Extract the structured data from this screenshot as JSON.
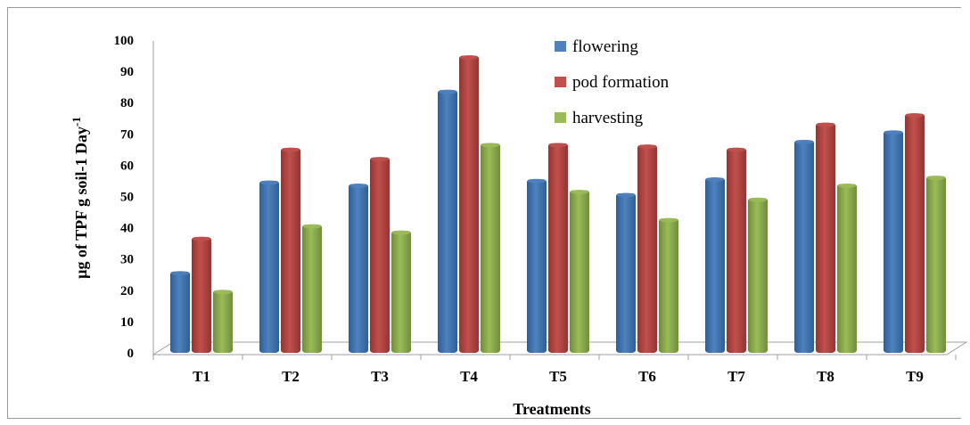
{
  "chart_data": {
    "type": "bar",
    "categories": [
      "T1",
      "T2",
      "T3",
      "T4",
      "T5",
      "T6",
      "T7",
      "T8",
      "T9"
    ],
    "series": [
      {
        "name": "flowering",
        "values": [
          26,
          55,
          54,
          84,
          55.5,
          51,
          56,
          68,
          71
        ],
        "color": "#4f81bd",
        "dark": "#2e5f99"
      },
      {
        "name": "pod formation",
        "values": [
          37,
          65.5,
          62.5,
          95,
          67,
          66.5,
          65.5,
          73.5,
          76.5
        ],
        "color": "#c0504d",
        "dark": "#943431"
      },
      {
        "name": "harvesting",
        "values": [
          20,
          41,
          39,
          67,
          52,
          43,
          49.5,
          54,
          56.5
        ],
        "color": "#9bbb59",
        "dark": "#718d3a"
      }
    ],
    "yticks": [
      "0",
      "10",
      "20",
      "30",
      "40",
      "50",
      "60",
      "70",
      "80",
      "90",
      "100"
    ],
    "ylim": [
      0,
      100
    ],
    "xlabel": "Treatments",
    "ylabel_main": "µg of TPF g soil-1 Day",
    "ylabel_sup": "-1",
    "legend_position": "top-right",
    "grid": false
  }
}
